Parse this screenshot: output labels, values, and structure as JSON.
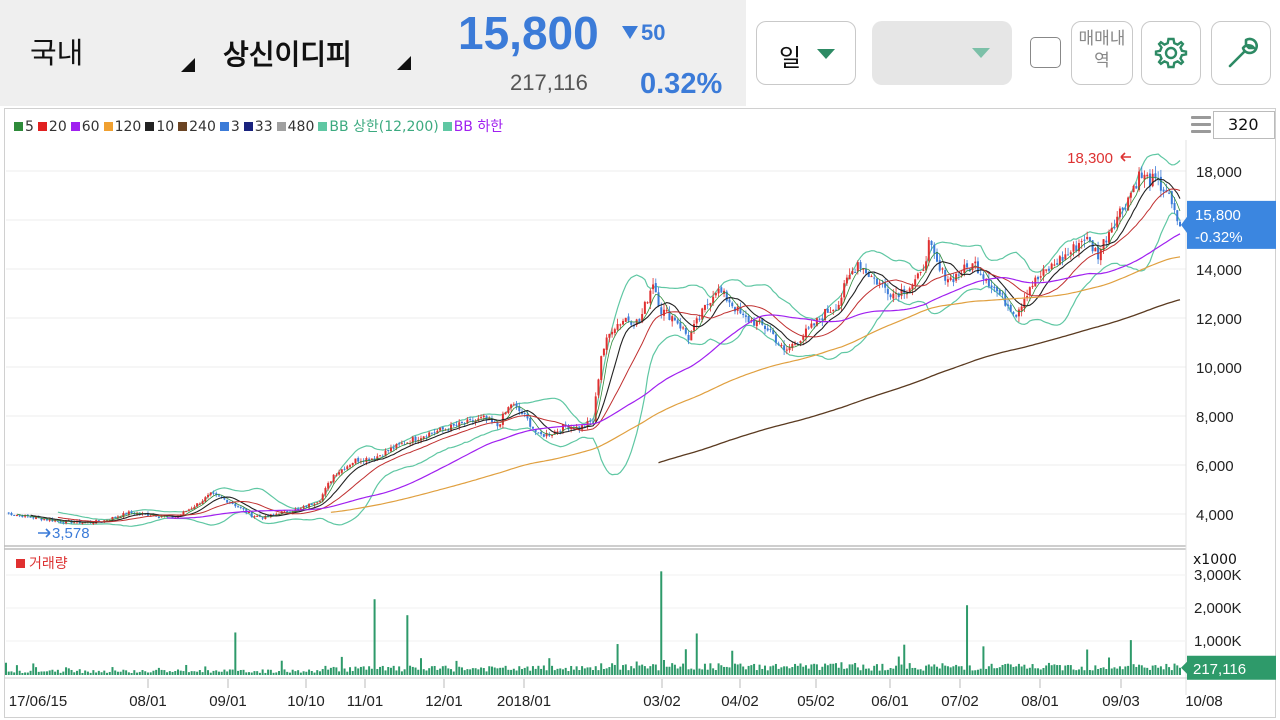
{
  "header": {
    "market": "국내",
    "stock_name": "상신이디피",
    "price": "15,800",
    "change": "50",
    "volume": "217,116",
    "change_rate": "0.32%",
    "period": "일",
    "trade_button": "매매내역",
    "settings_icon": "gear-icon",
    "tools_icon": "wrench-icon",
    "colors": {
      "down": "#3b7bd8",
      "up": "#d33333",
      "accent": "#2d8a64"
    }
  },
  "legend": [
    {
      "label": "5",
      "color": "#2e8b3a"
    },
    {
      "label": "20",
      "color": "#e02020"
    },
    {
      "label": "60",
      "color": "#a020f0"
    },
    {
      "label": "120",
      "color": "#f0a030"
    },
    {
      "label": "10",
      "color": "#222222"
    },
    {
      "label": "240",
      "color": "#6b4423"
    },
    {
      "label": "3",
      "color": "#3b7bd8"
    },
    {
      "label": "33",
      "color": "#1a237e"
    },
    {
      "label": "480",
      "color": "#a0a0a0"
    },
    {
      "label": "BB 상한(12,200)",
      "color": "#5fc7a3"
    },
    {
      "label": "BB 하한",
      "color": "#5fc7a3"
    }
  ],
  "chart_controls": {
    "period_count": "320"
  },
  "chart_data": [
    {
      "type": "candlestick",
      "title": "",
      "price_axis": {
        "ticks": [
          "18,000",
          "16,000",
          "14,000",
          "12,000",
          "10,000",
          "8,000",
          "6,000",
          "4,000"
        ],
        "range": [
          3000,
          19500
        ]
      },
      "date_ticks": [
        "17/06/15",
        "08/01",
        "09/01",
        "10/10",
        "11/01",
        "12/01",
        "2018/01",
        "03/02",
        "04/02",
        "05/02",
        "06/01",
        "07/02",
        "08/01",
        "09/03",
        "10/08"
      ],
      "annotations": {
        "high": "18,300",
        "low": "3,578"
      },
      "current": {
        "price": "15,800",
        "change": "-0.32%"
      },
      "close_path": [
        [
          0,
          4050
        ],
        [
          10,
          3850
        ],
        [
          20,
          3700
        ],
        [
          28,
          3650
        ],
        [
          35,
          3700
        ],
        [
          45,
          4050
        ],
        [
          55,
          3950
        ],
        [
          62,
          3850
        ],
        [
          70,
          4400
        ],
        [
          75,
          4800
        ],
        [
          82,
          4500
        ],
        [
          90,
          3950
        ],
        [
          95,
          3850
        ],
        [
          100,
          4050
        ],
        [
          108,
          4200
        ],
        [
          115,
          4600
        ],
        [
          120,
          5600
        ],
        [
          128,
          6200
        ],
        [
          135,
          6300
        ],
        [
          142,
          6700
        ],
        [
          148,
          7000
        ],
        [
          155,
          7300
        ],
        [
          162,
          7500
        ],
        [
          168,
          7700
        ],
        [
          175,
          7900
        ],
        [
          180,
          7600
        ],
        [
          185,
          8500
        ],
        [
          190,
          8000
        ],
        [
          195,
          7200
        ],
        [
          200,
          7300
        ],
        [
          205,
          7600
        ],
        [
          210,
          7500
        ],
        [
          215,
          7800
        ],
        [
          218,
          10500
        ],
        [
          222,
          11600
        ],
        [
          227,
          12000
        ],
        [
          232,
          11800
        ],
        [
          237,
          13500
        ],
        [
          240,
          12300
        ],
        [
          245,
          12000
        ],
        [
          250,
          11200
        ],
        [
          255,
          12200
        ],
        [
          260,
          13200
        ],
        [
          265,
          12700
        ],
        [
          270,
          12000
        ],
        [
          275,
          11800
        ],
        [
          280,
          11500
        ],
        [
          285,
          10600
        ],
        [
          290,
          11100
        ],
        [
          295,
          11600
        ],
        [
          300,
          12200
        ],
        [
          305,
          12600
        ],
        [
          308,
          13500
        ],
        [
          312,
          14300
        ],
        [
          316,
          13800
        ],
        [
          320,
          13400
        ],
        [
          325,
          13000
        ],
        [
          330,
          13200
        ],
        [
          335,
          13700
        ],
        [
          338,
          15000
        ],
        [
          342,
          13900
        ],
        [
          346,
          13600
        ],
        [
          350,
          13900
        ],
        [
          355,
          14200
        ],
        [
          360,
          13500
        ],
        [
          365,
          12800
        ],
        [
          370,
          12200
        ],
        [
          375,
          13300
        ],
        [
          380,
          13800
        ],
        [
          385,
          14300
        ],
        [
          390,
          14700
        ],
        [
          395,
          15300
        ],
        [
          400,
          14600
        ],
        [
          405,
          15800
        ],
        [
          410,
          16700
        ],
        [
          415,
          17800
        ],
        [
          420,
          17600
        ],
        [
          425,
          17200
        ],
        [
          428,
          16200
        ],
        [
          430,
          15800
        ]
      ],
      "volume_axis": {
        "unit": "x1000",
        "ticks": [
          "3,000K",
          "2,000K",
          "1,000K"
        ],
        "range": [
          0,
          3300
        ]
      },
      "volume_spikes": [
        [
          84,
          1280
        ],
        [
          135,
          2280
        ],
        [
          147,
          1800
        ],
        [
          240,
          3120
        ],
        [
          253,
          1250
        ],
        [
          352,
          2100
        ],
        [
          412,
          1050
        ],
        [
          430,
          217
        ]
      ],
      "current_volume": "217,116",
      "volume_label": "거래량"
    }
  ]
}
